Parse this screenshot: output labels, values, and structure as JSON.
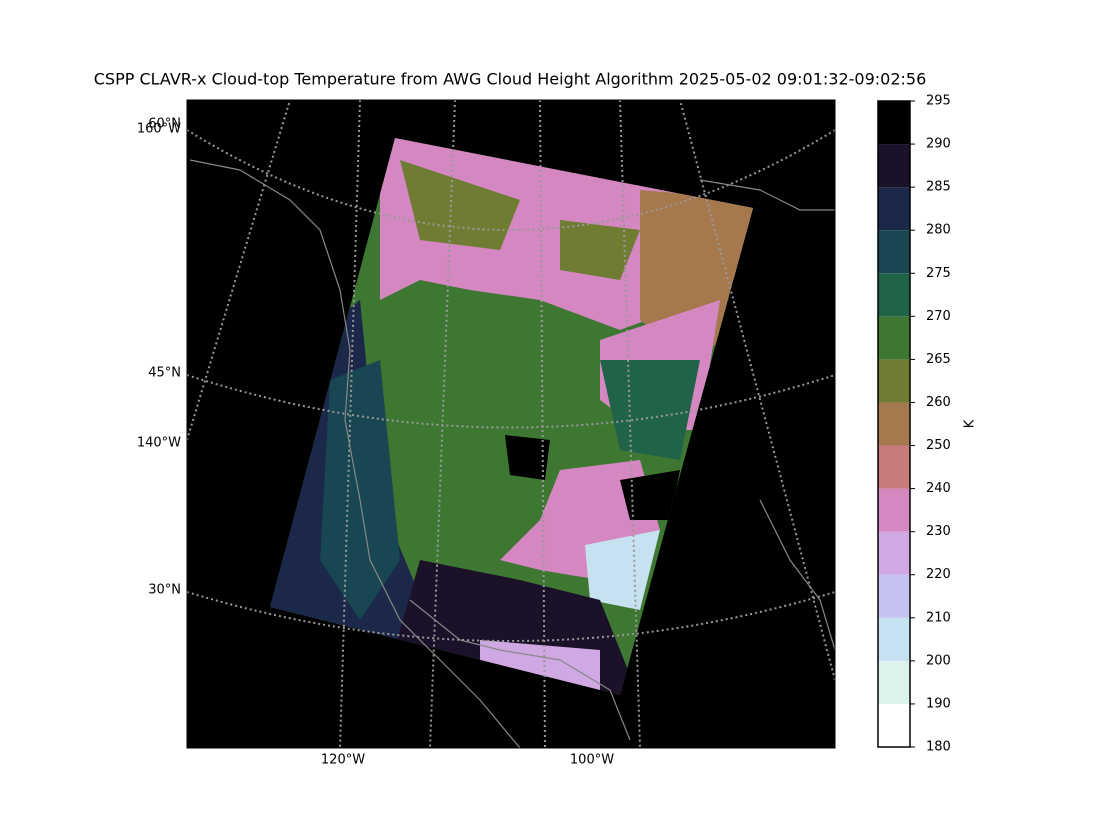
{
  "title": "CSPP CLAVR-x Cloud-top Temperature from AWG Cloud Height Algorithm 2025-05-02 09:01:32-09:02:56",
  "map": {
    "labels": [
      "60°N",
      "160°W",
      "45°N",
      "140°W",
      "30°N",
      "120°W",
      "100°W"
    ]
  },
  "colorbar": {
    "label": "K",
    "ticks": [
      180,
      190,
      200,
      210,
      220,
      230,
      240,
      250,
      260,
      265,
      270,
      275,
      280,
      285,
      290,
      295
    ],
    "colors": [
      "#ffffff",
      "#ddf2ec",
      "#c6e2f0",
      "#c4c2f0",
      "#d0a8e3",
      "#d487c0",
      "#c87a7c",
      "#a5784e",
      "#6f7d33",
      "#3d7732",
      "#216349",
      "#184652",
      "#1c284a",
      "#1b1229",
      "#000000"
    ]
  }
}
